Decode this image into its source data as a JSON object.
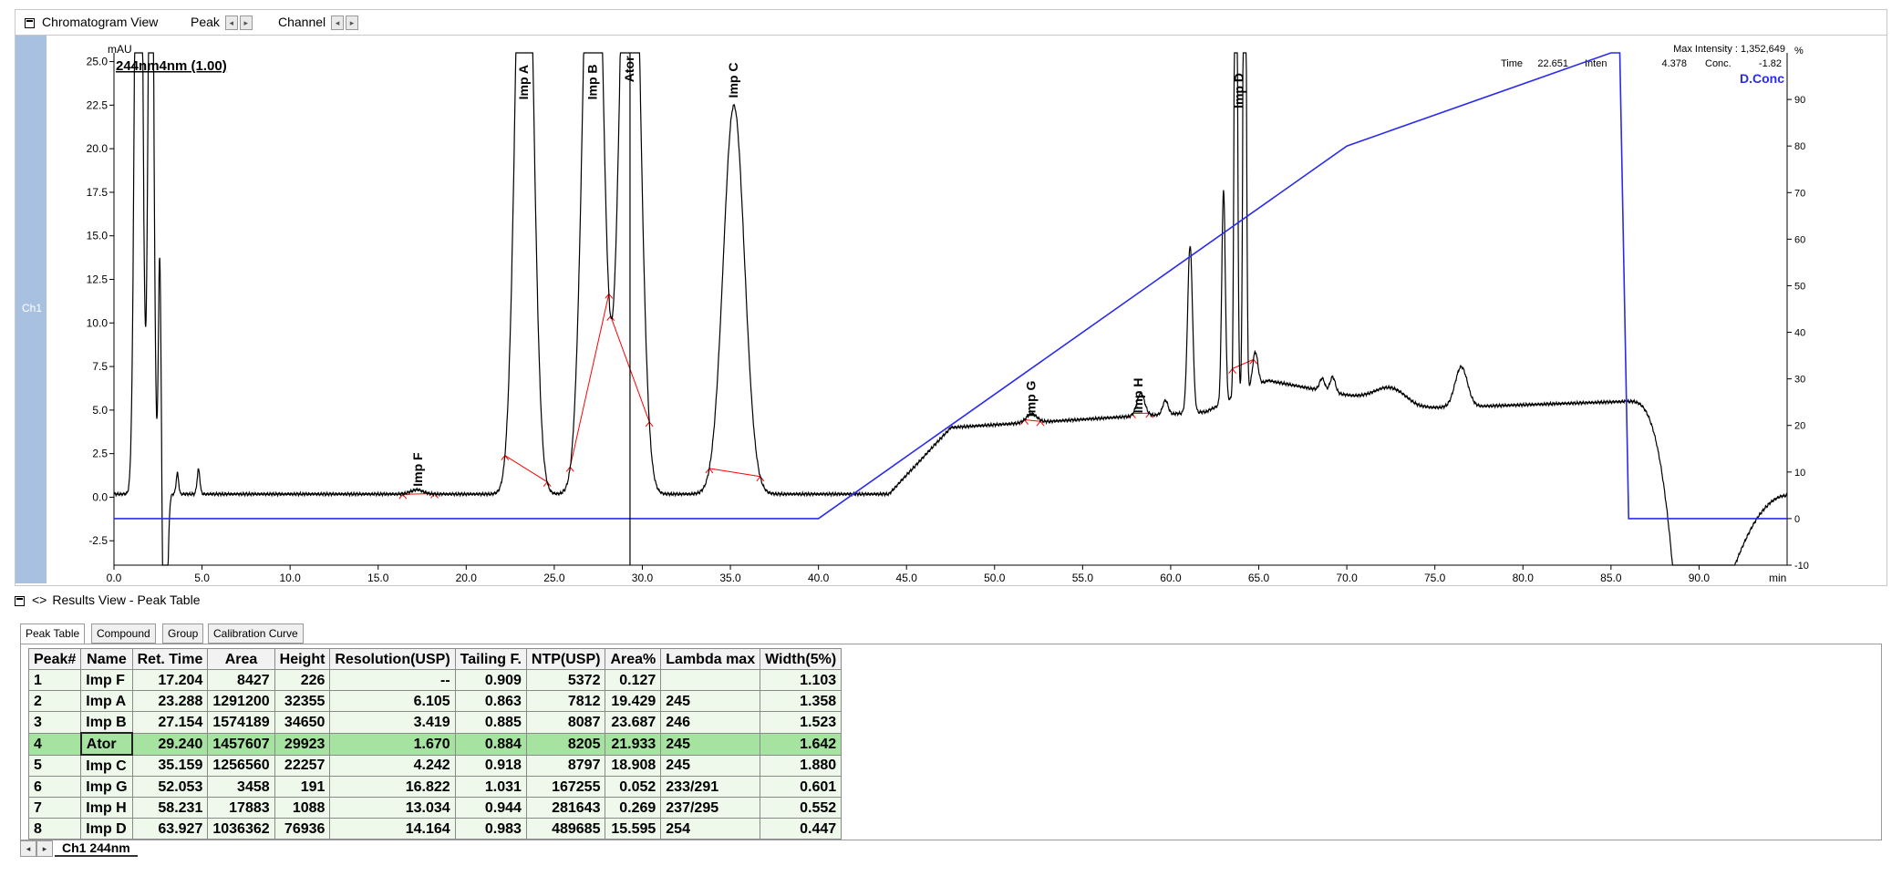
{
  "toolbar": {
    "title": "Chromatogram View",
    "peak_label": "Peak",
    "channel_label": "Channel",
    "spin_left": "◂",
    "spin_right": "▸"
  },
  "channel_strip_label": "Ch1",
  "chart_data": {
    "type": "line",
    "channel_title": "244nm4nm (1.00)",
    "y_unit": "mAU",
    "x_unit": "min",
    "xlim": [
      0,
      95
    ],
    "ylim": [
      -3.9,
      25.5
    ],
    "ylim_right": [
      -10,
      100
    ],
    "x_ticks": [
      "0.0",
      "5.0",
      "10.0",
      "15.0",
      "20.0",
      "25.0",
      "30.0",
      "35.0",
      "40.0",
      "45.0",
      "50.0",
      "55.0",
      "60.0",
      "65.0",
      "70.0",
      "75.0",
      "80.0",
      "85.0",
      "90.0"
    ],
    "y_ticks": [
      "-2.5",
      "0.0",
      "2.5",
      "5.0",
      "7.5",
      "10.0",
      "12.5",
      "15.0",
      "17.5",
      "20.0",
      "22.5",
      "25.0"
    ],
    "y_right_ticks": [
      "-10",
      "0",
      "10",
      "20",
      "30",
      "40",
      "50",
      "60",
      "70",
      "80",
      "90"
    ],
    "cursor_time": 29.3,
    "info_line1_time_label": "Time",
    "info_line1_time": "22.651",
    "info_line1_inten_label": "Inten",
    "info_line2_value": "4.378",
    "info_line2_conc_label": "Conc.",
    "info_line2_conc": "-1.82",
    "max_intensity_label": "Max Intensity : 1,352,649",
    "percent_label": "%",
    "gradient_label": "D.Conc",
    "peak_labels": [
      {
        "name": "Imp F",
        "x": 17.3,
        "y": 0.3
      },
      {
        "name": "Imp A",
        "x": 23.3,
        "y": 22.5
      },
      {
        "name": "Imp B",
        "x": 27.2,
        "y": 22.5
      },
      {
        "name": "Ator",
        "x": 29.3,
        "y": 23.5
      },
      {
        "name": "Imp C",
        "x": 35.2,
        "y": 22.6
      },
      {
        "name": "Imp G",
        "x": 52.1,
        "y": 4.3
      },
      {
        "name": "Imp H",
        "x": 58.2,
        "y": 4.5
      },
      {
        "name": "Imp D",
        "x": 63.9,
        "y": 22.0
      }
    ],
    "gradient": [
      [
        0,
        0
      ],
      [
        40,
        0
      ],
      [
        70,
        80
      ],
      [
        85,
        100
      ],
      [
        85.5,
        100
      ],
      [
        86,
        0
      ],
      [
        95,
        0
      ]
    ]
  },
  "results": {
    "header": "Results View - Peak Table",
    "header_icon": "<>",
    "tabs": [
      "Peak Table",
      "Compound",
      "Group",
      "Calibration Curve"
    ],
    "columns": [
      "Peak#",
      "Name",
      "Ret. Time",
      "Area",
      "Height",
      "Resolution(USP)",
      "Tailing F.",
      "NTP(USP)",
      "Area%",
      "Lambda max",
      "Width(5%)"
    ],
    "rows": [
      [
        "1",
        "Imp F",
        "17.204",
        "8427",
        "226",
        "--",
        "0.909",
        "5372",
        "0.127",
        "",
        "1.103"
      ],
      [
        "2",
        "Imp A",
        "23.288",
        "1291200",
        "32355",
        "6.105",
        "0.863",
        "7812",
        "19.429",
        "245",
        "1.358"
      ],
      [
        "3",
        "Imp B",
        "27.154",
        "1574189",
        "34650",
        "3.419",
        "0.885",
        "8087",
        "23.687",
        "246",
        "1.523"
      ],
      [
        "4",
        "Ator",
        "29.240",
        "1457607",
        "29923",
        "1.670",
        "0.884",
        "8205",
        "21.933",
        "245",
        "1.642"
      ],
      [
        "5",
        "Imp C",
        "35.159",
        "1256560",
        "22257",
        "4.242",
        "0.918",
        "8797",
        "18.908",
        "245",
        "1.880"
      ],
      [
        "6",
        "Imp G",
        "52.053",
        "3458",
        "191",
        "16.822",
        "1.031",
        "167255",
        "0.052",
        "233/291",
        "0.601"
      ],
      [
        "7",
        "Imp H",
        "58.231",
        "17883",
        "1088",
        "13.034",
        "0.944",
        "281643",
        "0.269",
        "237/295",
        "0.552"
      ],
      [
        "8",
        "Imp D",
        "63.927",
        "1036362",
        "76936",
        "14.164",
        "0.983",
        "489685",
        "15.595",
        "254",
        "0.447"
      ]
    ],
    "selected_row": 3,
    "channel_tab": "Ch1 244nm"
  },
  "colors": {
    "trace": "#000000",
    "gradient": "#2a2af0",
    "baseline": "#ff0000",
    "strip": "#a9c1e0",
    "selected_row": "#a6e3a0",
    "row_bg": "#eef9ec"
  }
}
